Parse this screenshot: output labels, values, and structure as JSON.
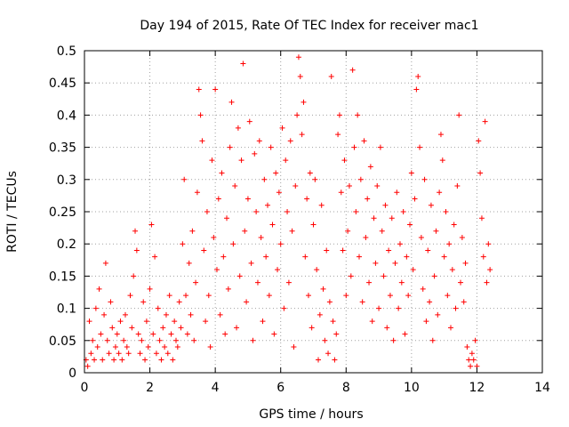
{
  "chart_data": {
    "type": "scatter",
    "title": "Day 194 of 2015, Rate Of TEC Index for receiver mac1",
    "xlabel": "GPS time / hours",
    "ylabel": "ROTI / TECUs",
    "xlim": [
      0,
      14
    ],
    "ylim": [
      0,
      0.5
    ],
    "xticks": [
      0,
      2,
      4,
      6,
      8,
      10,
      12,
      14
    ],
    "xtick_labels": [
      "0",
      "2",
      "4",
      "6",
      "8",
      "10",
      "12",
      "14"
    ],
    "yticks": [
      0,
      0.05,
      0.1,
      0.15,
      0.2,
      0.25,
      0.3,
      0.35,
      0.4,
      0.45,
      0.5
    ],
    "ytick_labels": [
      "0",
      "0.05",
      "0.1",
      "0.15",
      "0.2",
      "0.25",
      "0.3",
      "0.35",
      "0.4",
      "0.45",
      "0.5"
    ],
    "grid": true,
    "marker": "plus",
    "color": "#ff0000",
    "series": [
      {
        "name": "ROTI",
        "points": [
          [
            0.05,
            0.02
          ],
          [
            0.1,
            0.01
          ],
          [
            0.15,
            0.08
          ],
          [
            0.2,
            0.03
          ],
          [
            0.25,
            0.05
          ],
          [
            0.3,
            0.02
          ],
          [
            0.35,
            0.1
          ],
          [
            0.4,
            0.04
          ],
          [
            0.45,
            0.13
          ],
          [
            0.5,
            0.06
          ],
          [
            0.55,
            0.02
          ],
          [
            0.6,
            0.09
          ],
          [
            0.65,
            0.17
          ],
          [
            0.7,
            0.05
          ],
          [
            0.75,
            0.03
          ],
          [
            0.8,
            0.11
          ],
          [
            0.85,
            0.07
          ],
          [
            0.9,
            0.02
          ],
          [
            0.95,
            0.04
          ],
          [
            1.0,
            0.06
          ],
          [
            1.05,
            0.03
          ],
          [
            1.1,
            0.08
          ],
          [
            1.15,
            0.02
          ],
          [
            1.2,
            0.05
          ],
          [
            1.25,
            0.09
          ],
          [
            1.3,
            0.04
          ],
          [
            1.35,
            0.03
          ],
          [
            1.4,
            0.12
          ],
          [
            1.45,
            0.07
          ],
          [
            1.5,
            0.15
          ],
          [
            1.55,
            0.22
          ],
          [
            1.6,
            0.19
          ],
          [
            1.65,
            0.06
          ],
          [
            1.7,
            0.03
          ],
          [
            1.75,
            0.05
          ],
          [
            1.8,
            0.11
          ],
          [
            1.85,
            0.02
          ],
          [
            1.9,
            0.08
          ],
          [
            1.95,
            0.04
          ],
          [
            2.0,
            0.13
          ],
          [
            2.05,
            0.23
          ],
          [
            2.1,
            0.06
          ],
          [
            2.15,
            0.18
          ],
          [
            2.2,
            0.03
          ],
          [
            2.25,
            0.1
          ],
          [
            2.3,
            0.05
          ],
          [
            2.35,
            0.02
          ],
          [
            2.4,
            0.07
          ],
          [
            2.45,
            0.04
          ],
          [
            2.5,
            0.09
          ],
          [
            2.55,
            0.03
          ],
          [
            2.6,
            0.12
          ],
          [
            2.65,
            0.06
          ],
          [
            2.7,
            0.02
          ],
          [
            2.75,
            0.08
          ],
          [
            2.8,
            0.05
          ],
          [
            2.85,
            0.04
          ],
          [
            2.9,
            0.11
          ],
          [
            2.95,
            0.07
          ],
          [
            3.0,
            0.2
          ],
          [
            3.05,
            0.3
          ],
          [
            3.1,
            0.12
          ],
          [
            3.15,
            0.06
          ],
          [
            3.2,
            0.17
          ],
          [
            3.25,
            0.09
          ],
          [
            3.3,
            0.22
          ],
          [
            3.35,
            0.05
          ],
          [
            3.4,
            0.14
          ],
          [
            3.45,
            0.28
          ],
          [
            3.5,
            0.44
          ],
          [
            3.55,
            0.4
          ],
          [
            3.6,
            0.36
          ],
          [
            3.65,
            0.19
          ],
          [
            3.7,
            0.08
          ],
          [
            3.75,
            0.25
          ],
          [
            3.8,
            0.12
          ],
          [
            3.85,
            0.04
          ],
          [
            3.9,
            0.33
          ],
          [
            3.95,
            0.21
          ],
          [
            4.0,
            0.44
          ],
          [
            4.05,
            0.16
          ],
          [
            4.1,
            0.27
          ],
          [
            4.15,
            0.09
          ],
          [
            4.2,
            0.31
          ],
          [
            4.25,
            0.18
          ],
          [
            4.3,
            0.06
          ],
          [
            4.35,
            0.24
          ],
          [
            4.4,
            0.13
          ],
          [
            4.45,
            0.35
          ],
          [
            4.5,
            0.42
          ],
          [
            4.55,
            0.2
          ],
          [
            4.6,
            0.29
          ],
          [
            4.65,
            0.07
          ],
          [
            4.7,
            0.38
          ],
          [
            4.75,
            0.15
          ],
          [
            4.8,
            0.33
          ],
          [
            4.85,
            0.48
          ],
          [
            4.9,
            0.22
          ],
          [
            4.95,
            0.11
          ],
          [
            5.0,
            0.27
          ],
          [
            5.05,
            0.39
          ],
          [
            5.1,
            0.17
          ],
          [
            5.15,
            0.05
          ],
          [
            5.2,
            0.34
          ],
          [
            5.25,
            0.25
          ],
          [
            5.3,
            0.14
          ],
          [
            5.35,
            0.36
          ],
          [
            5.4,
            0.21
          ],
          [
            5.45,
            0.08
          ],
          [
            5.5,
            0.3
          ],
          [
            5.55,
            0.18
          ],
          [
            5.6,
            0.26
          ],
          [
            5.65,
            0.12
          ],
          [
            5.7,
            0.35
          ],
          [
            5.75,
            0.23
          ],
          [
            5.8,
            0.06
          ],
          [
            5.85,
            0.31
          ],
          [
            5.9,
            0.16
          ],
          [
            5.95,
            0.28
          ],
          [
            6.0,
            0.2
          ],
          [
            6.05,
            0.38
          ],
          [
            6.1,
            0.1
          ],
          [
            6.15,
            0.33
          ],
          [
            6.2,
            0.25
          ],
          [
            6.25,
            0.14
          ],
          [
            6.3,
            0.36
          ],
          [
            6.35,
            0.22
          ],
          [
            6.4,
            0.04
          ],
          [
            6.45,
            0.29
          ],
          [
            6.5,
            0.4
          ],
          [
            6.55,
            0.49
          ],
          [
            6.6,
            0.46
          ],
          [
            6.65,
            0.37
          ],
          [
            6.7,
            0.42
          ],
          [
            6.75,
            0.18
          ],
          [
            6.8,
            0.27
          ],
          [
            6.85,
            0.12
          ],
          [
            6.9,
            0.31
          ],
          [
            6.95,
            0.07
          ],
          [
            7.0,
            0.23
          ],
          [
            7.05,
            0.3
          ],
          [
            7.1,
            0.16
          ],
          [
            7.15,
            0.02
          ],
          [
            7.2,
            0.09
          ],
          [
            7.25,
            0.26
          ],
          [
            7.3,
            0.13
          ],
          [
            7.35,
            0.05
          ],
          [
            7.4,
            0.19
          ],
          [
            7.45,
            0.03
          ],
          [
            7.5,
            0.11
          ],
          [
            7.55,
            0.46
          ],
          [
            7.6,
            0.08
          ],
          [
            7.65,
            0.02
          ],
          [
            7.7,
            0.06
          ],
          [
            7.75,
            0.37
          ],
          [
            7.8,
            0.4
          ],
          [
            7.85,
            0.28
          ],
          [
            7.9,
            0.19
          ],
          [
            7.95,
            0.33
          ],
          [
            8.0,
            0.12
          ],
          [
            8.05,
            0.22
          ],
          [
            8.1,
            0.29
          ],
          [
            8.15,
            0.15
          ],
          [
            8.2,
            0.47
          ],
          [
            8.25,
            0.35
          ],
          [
            8.3,
            0.25
          ],
          [
            8.35,
            0.4
          ],
          [
            8.4,
            0.18
          ],
          [
            8.45,
            0.3
          ],
          [
            8.5,
            0.11
          ],
          [
            8.55,
            0.36
          ],
          [
            8.6,
            0.21
          ],
          [
            8.65,
            0.27
          ],
          [
            8.7,
            0.14
          ],
          [
            8.75,
            0.32
          ],
          [
            8.8,
            0.08
          ],
          [
            8.85,
            0.24
          ],
          [
            8.9,
            0.17
          ],
          [
            8.95,
            0.29
          ],
          [
            9.0,
            0.1
          ],
          [
            9.05,
            0.35
          ],
          [
            9.1,
            0.22
          ],
          [
            9.15,
            0.15
          ],
          [
            9.2,
            0.26
          ],
          [
            9.25,
            0.07
          ],
          [
            9.3,
            0.19
          ],
          [
            9.35,
            0.12
          ],
          [
            9.4,
            0.24
          ],
          [
            9.45,
            0.05
          ],
          [
            9.5,
            0.17
          ],
          [
            9.55,
            0.28
          ],
          [
            9.6,
            0.1
          ],
          [
            9.65,
            0.2
          ],
          [
            9.7,
            0.14
          ],
          [
            9.75,
            0.25
          ],
          [
            9.8,
            0.06
          ],
          [
            9.85,
            0.18
          ],
          [
            9.9,
            0.12
          ],
          [
            9.95,
            0.23
          ],
          [
            10.0,
            0.31
          ],
          [
            10.05,
            0.16
          ],
          [
            10.1,
            0.27
          ],
          [
            10.15,
            0.44
          ],
          [
            10.2,
            0.46
          ],
          [
            10.25,
            0.35
          ],
          [
            10.3,
            0.21
          ],
          [
            10.35,
            0.13
          ],
          [
            10.4,
            0.3
          ],
          [
            10.45,
            0.08
          ],
          [
            10.5,
            0.19
          ],
          [
            10.55,
            0.11
          ],
          [
            10.6,
            0.26
          ],
          [
            10.65,
            0.05
          ],
          [
            10.7,
            0.15
          ],
          [
            10.75,
            0.22
          ],
          [
            10.8,
            0.09
          ],
          [
            10.85,
            0.28
          ],
          [
            10.9,
            0.37
          ],
          [
            10.95,
            0.33
          ],
          [
            11.0,
            0.18
          ],
          [
            11.05,
            0.25
          ],
          [
            11.1,
            0.12
          ],
          [
            11.15,
            0.2
          ],
          [
            11.2,
            0.07
          ],
          [
            11.25,
            0.16
          ],
          [
            11.3,
            0.23
          ],
          [
            11.35,
            0.1
          ],
          [
            11.4,
            0.29
          ],
          [
            11.45,
            0.4
          ],
          [
            11.5,
            0.14
          ],
          [
            11.55,
            0.21
          ],
          [
            11.6,
            0.11
          ],
          [
            11.65,
            0.17
          ],
          [
            11.7,
            0.04
          ],
          [
            11.75,
            0.02
          ],
          [
            11.8,
            0.01
          ],
          [
            11.85,
            0.03
          ],
          [
            11.9,
            0.02
          ],
          [
            11.95,
            0.05
          ],
          [
            12.0,
            0.01
          ],
          [
            12.05,
            0.36
          ],
          [
            12.1,
            0.31
          ],
          [
            12.15,
            0.24
          ],
          [
            12.2,
            0.18
          ],
          [
            12.25,
            0.39
          ],
          [
            12.3,
            0.14
          ],
          [
            12.35,
            0.2
          ],
          [
            12.4,
            0.16
          ]
        ]
      }
    ]
  }
}
